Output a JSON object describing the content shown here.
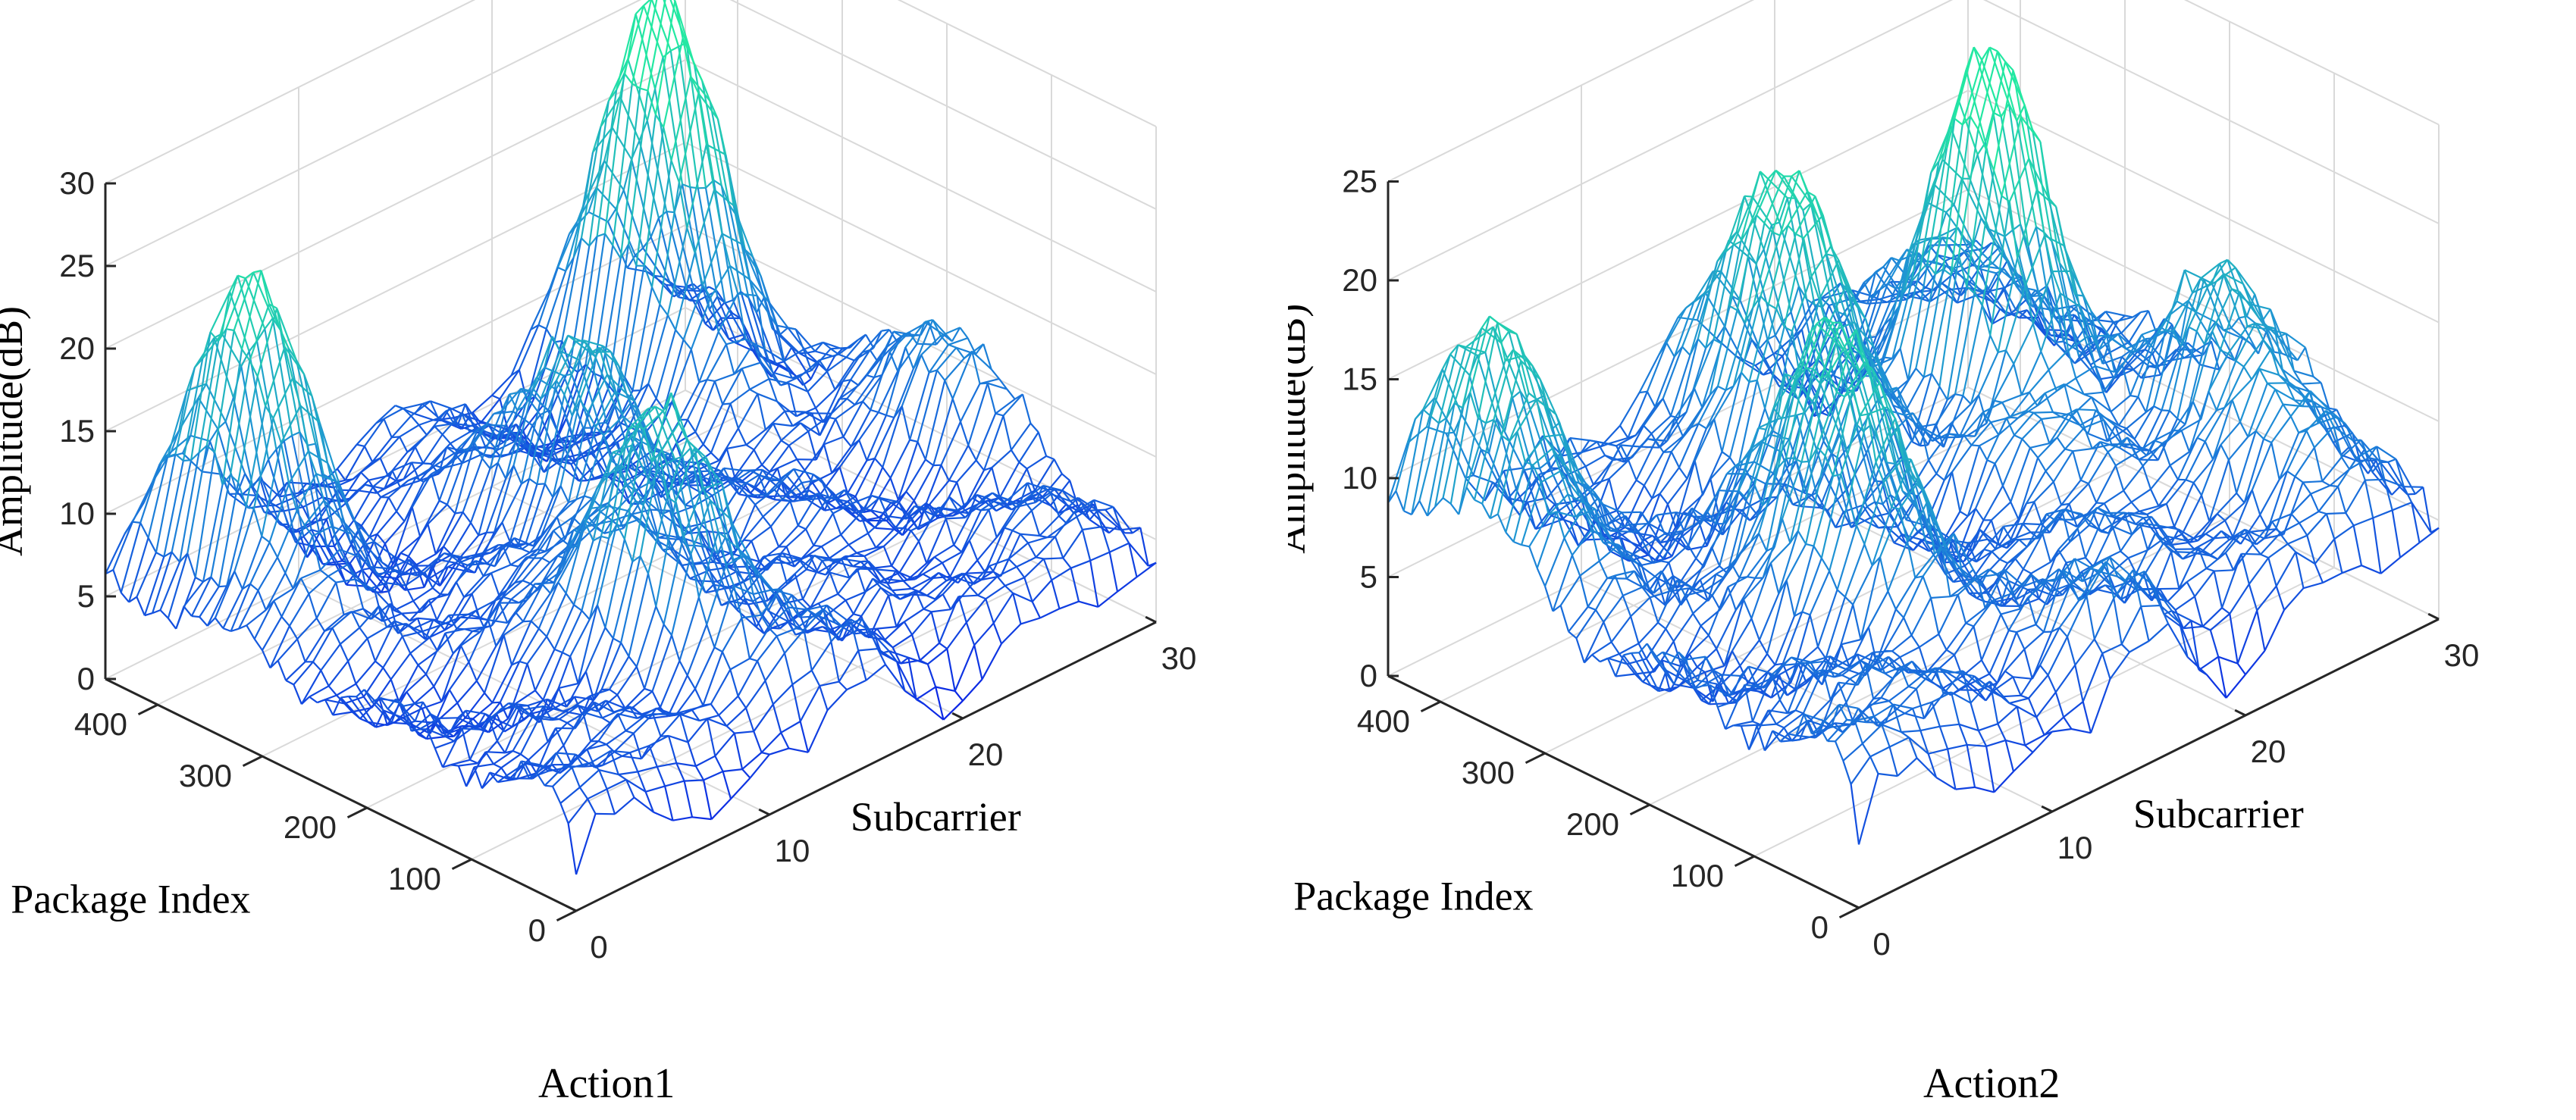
{
  "chart_data": [
    {
      "type": "surface-mesh",
      "caption": "Action1",
      "zlabel": "Amplitude(dB)",
      "ylabel": "Package Index",
      "xlabel": "Subcarrier",
      "xlim": [
        0,
        30
      ],
      "ylim": [
        0,
        450
      ],
      "zlim": [
        0,
        30
      ],
      "xticks": [
        "0",
        "10",
        "20",
        "30"
      ],
      "yticks": [
        "0",
        "100",
        "200",
        "300",
        "400"
      ],
      "zticks": [
        "0",
        "5",
        "10",
        "15",
        "20",
        "25",
        "30"
      ],
      "grid": true,
      "colormap": [
        "#0a1ee6",
        "#1f8fd6",
        "#23e8a2"
      ],
      "surface": {
        "base_level": 6,
        "ridges": [
          {
            "subcarrier": 4,
            "package_index": 380,
            "peak": 22
          },
          {
            "subcarrier": 11,
            "package_index": 120,
            "peak": 20
          },
          {
            "subcarrier": 15,
            "package_index": 260,
            "peak": 18
          },
          {
            "subcarrier": 25,
            "package_index": 380,
            "peak": 27
          },
          {
            "subcarrier": 29,
            "package_index": 200,
            "peak": 12
          }
        ]
      }
    },
    {
      "type": "surface-mesh",
      "caption": "Action2",
      "zlabel": "Amplitude(dB)",
      "ylabel": "Package Index",
      "xlabel": "Subcarrier",
      "xlim": [
        0,
        30
      ],
      "ylim": [
        0,
        450
      ],
      "zlim": [
        0,
        25
      ],
      "xticks": [
        "0",
        "10",
        "20",
        "30"
      ],
      "yticks": [
        "0",
        "100",
        "200",
        "300",
        "400"
      ],
      "zticks": [
        "0",
        "5",
        "10",
        "15",
        "20",
        "25"
      ],
      "grid": true,
      "colormap": [
        "#0a1ee6",
        "#1f8fd6",
        "#23e8a2"
      ],
      "surface": {
        "base_level": 7,
        "ridges": [
          {
            "subcarrier": 2,
            "package_index": 380,
            "peak": 17
          },
          {
            "subcarrier": 10,
            "package_index": 200,
            "peak": 19
          },
          {
            "subcarrier": 16,
            "package_index": 360,
            "peak": 20
          },
          {
            "subcarrier": 23,
            "package_index": 300,
            "peak": 24
          },
          {
            "subcarrier": 27,
            "package_index": 150,
            "peak": 16
          }
        ]
      }
    }
  ]
}
